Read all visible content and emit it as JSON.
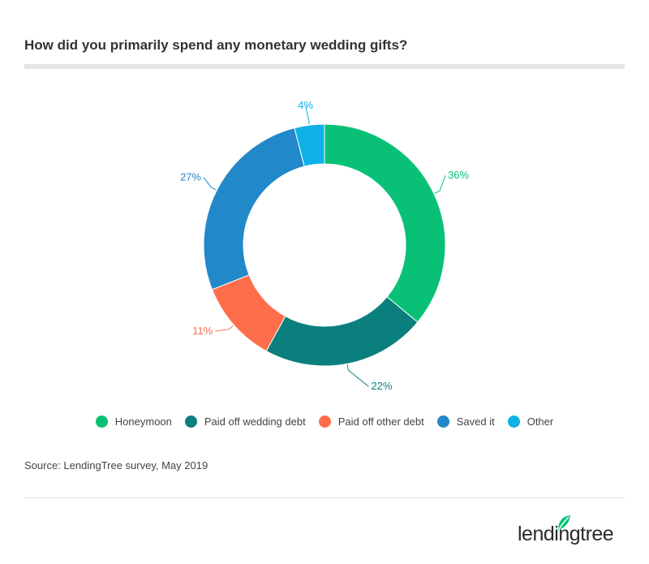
{
  "title": "How did you primarily spend any monetary wedding gifts?",
  "source": "Source: LendingTree survey, May 2019",
  "brand": {
    "name": "lendingtree",
    "color": "#08c177"
  },
  "chart_data": {
    "type": "pie",
    "donut": true,
    "legend_position": "bottom",
    "slices": [
      {
        "label": "Honeymoon",
        "value": 36,
        "value_label": "36%",
        "color": "#08c177"
      },
      {
        "label": "Paid off wedding debt",
        "value": 22,
        "value_label": "22%",
        "color": "#0a7f7d"
      },
      {
        "label": "Paid off other debt",
        "value": 11,
        "value_label": "11%",
        "color": "#ff6e4a"
      },
      {
        "label": "Saved it",
        "value": 27,
        "value_label": "27%",
        "color": "#2188c9"
      },
      {
        "label": "Other",
        "value": 4,
        "value_label": "4%",
        "color": "#0eb0e8"
      }
    ]
  }
}
